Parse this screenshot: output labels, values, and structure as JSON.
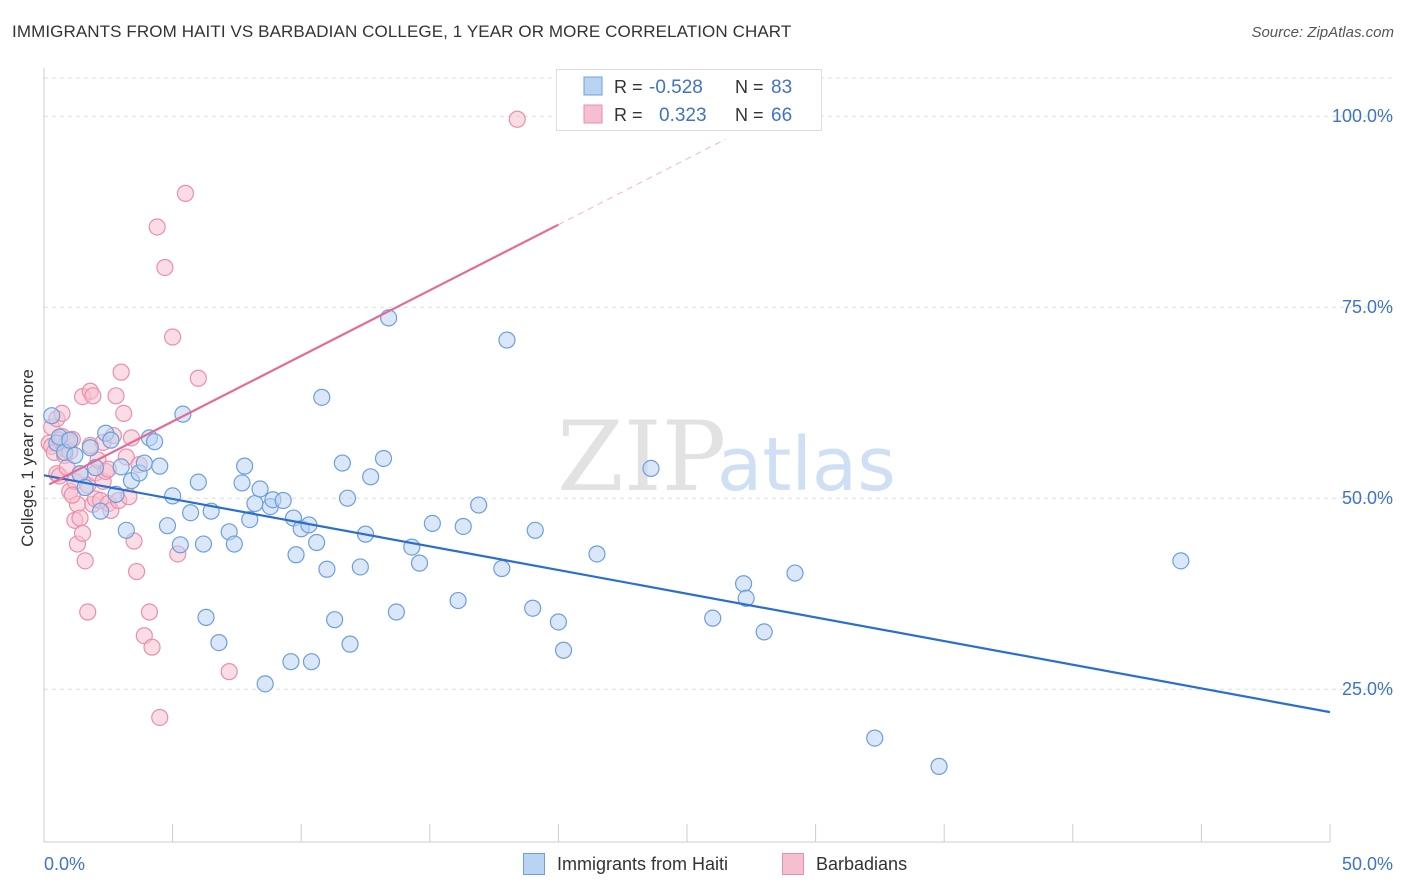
{
  "title": "IMMIGRANTS FROM HAITI VS BARBADIAN COLLEGE, 1 YEAR OR MORE CORRELATION CHART",
  "source": "Source: ZipAtlas.com",
  "watermark": {
    "zip": "ZIP",
    "atlas": "atlas"
  },
  "colors": {
    "blue_fill": "#b9d3f3",
    "blue_stroke": "#6c9fdc",
    "blue_line": "#2a6fce",
    "pink_fill": "#f6bfd0",
    "pink_stroke": "#ea8fab",
    "pink_line": "#e56b95",
    "axis_text": "#3d74c5",
    "grid": "#dddddd"
  },
  "legend": {
    "rows": [
      {
        "r_label": "R =",
        "r_value": "-0.528",
        "n_label": "N =",
        "n_value": "83"
      },
      {
        "r_label": "R =",
        "r_value": "0.323",
        "n_label": "N =",
        "n_value": "66"
      }
    ]
  },
  "bottom_legend": {
    "series1": "Immigrants from Haiti",
    "series2": "Barbadians"
  },
  "chart_data": {
    "type": "scatter",
    "xlabel": "",
    "ylabel": "College, 1 year or more",
    "xlim": [
      0,
      50
    ],
    "ylim": [
      5,
      105
    ],
    "x_tick_labels": [
      "0.0%",
      "50.0%"
    ],
    "y_ticks": [
      25,
      50,
      75,
      100
    ],
    "y_tick_labels": [
      "25.0%",
      "50.0%",
      "75.0%",
      "100.0%"
    ],
    "series": [
      {
        "name": "Immigrants from Haiti",
        "r": -0.528,
        "n": 83,
        "trend": {
          "x": [
            0,
            50
          ],
          "y": [
            53.0,
            22.0
          ]
        },
        "points": [
          [
            0.3,
            60.8
          ],
          [
            0.5,
            57.2
          ],
          [
            0.6,
            58.0
          ],
          [
            0.8,
            56.0
          ],
          [
            1.0,
            57.6
          ],
          [
            1.2,
            55.6
          ],
          [
            1.4,
            53.2
          ],
          [
            1.6,
            51.4
          ],
          [
            1.8,
            56.6
          ],
          [
            2.0,
            54.0
          ],
          [
            2.2,
            48.3
          ],
          [
            2.4,
            58.5
          ],
          [
            2.6,
            57.6
          ],
          [
            2.8,
            50.5
          ],
          [
            3.0,
            54.1
          ],
          [
            3.2,
            45.8
          ],
          [
            3.4,
            52.3
          ],
          [
            3.7,
            53.3
          ],
          [
            3.9,
            54.6
          ],
          [
            4.1,
            57.9
          ],
          [
            4.3,
            57.4
          ],
          [
            4.5,
            54.2
          ],
          [
            4.8,
            46.4
          ],
          [
            5.0,
            50.3
          ],
          [
            5.3,
            43.9
          ],
          [
            5.4,
            61.0
          ],
          [
            5.7,
            48.1
          ],
          [
            6.0,
            52.1
          ],
          [
            6.2,
            44.0
          ],
          [
            6.3,
            34.4
          ],
          [
            6.5,
            48.3
          ],
          [
            6.8,
            31.1
          ],
          [
            7.2,
            45.6
          ],
          [
            7.4,
            44.0
          ],
          [
            7.7,
            52.0
          ],
          [
            7.8,
            54.2
          ],
          [
            8.0,
            47.2
          ],
          [
            8.2,
            49.3
          ],
          [
            8.4,
            51.2
          ],
          [
            8.6,
            25.7
          ],
          [
            8.8,
            48.9
          ],
          [
            8.9,
            49.8
          ],
          [
            9.3,
            49.7
          ],
          [
            9.6,
            28.6
          ],
          [
            9.7,
            47.4
          ],
          [
            9.8,
            42.6
          ],
          [
            10.0,
            46.0
          ],
          [
            10.3,
            46.5
          ],
          [
            10.4,
            28.6
          ],
          [
            10.6,
            44.2
          ],
          [
            10.8,
            63.2
          ],
          [
            11.0,
            40.7
          ],
          [
            11.3,
            34.1
          ],
          [
            11.6,
            54.6
          ],
          [
            11.8,
            50.0
          ],
          [
            11.9,
            30.9
          ],
          [
            12.3,
            41.0
          ],
          [
            12.5,
            45.3
          ],
          [
            12.7,
            52.8
          ],
          [
            13.2,
            55.2
          ],
          [
            13.4,
            73.6
          ],
          [
            13.7,
            35.1
          ],
          [
            14.3,
            43.6
          ],
          [
            14.6,
            41.5
          ],
          [
            15.1,
            46.7
          ],
          [
            16.1,
            36.6
          ],
          [
            16.3,
            46.3
          ],
          [
            16.9,
            49.1
          ],
          [
            17.8,
            40.8
          ],
          [
            18.0,
            70.7
          ],
          [
            19.1,
            45.8
          ],
          [
            19.0,
            35.6
          ],
          [
            20.0,
            33.8
          ],
          [
            20.2,
            30.1
          ],
          [
            21.5,
            42.7
          ],
          [
            23.6,
            53.9
          ],
          [
            26.0,
            34.3
          ],
          [
            27.2,
            38.8
          ],
          [
            27.3,
            36.9
          ],
          [
            28.0,
            32.5
          ],
          [
            29.2,
            40.2
          ],
          [
            32.3,
            18.6
          ],
          [
            34.8,
            14.9
          ],
          [
            44.2,
            41.8
          ]
        ]
      },
      {
        "name": "Barbadians",
        "r": 0.323,
        "n": 66,
        "trend": {
          "x": [
            0.2,
            20.0
          ],
          "y": [
            51.8,
            85.8
          ]
        },
        "trend_ext": {
          "x": [
            20.0,
            26.5
          ],
          "y": [
            85.8,
            97.0
          ]
        },
        "points": [
          [
            0.2,
            57.2
          ],
          [
            0.3,
            59.3
          ],
          [
            0.3,
            56.8
          ],
          [
            0.4,
            56.0
          ],
          [
            0.5,
            53.2
          ],
          [
            0.5,
            60.4
          ],
          [
            0.6,
            57.6
          ],
          [
            0.6,
            52.9
          ],
          [
            0.7,
            61.1
          ],
          [
            0.7,
            58.1
          ],
          [
            0.8,
            56.5
          ],
          [
            0.8,
            55.6
          ],
          [
            0.9,
            57.5
          ],
          [
            0.9,
            54.0
          ],
          [
            1.0,
            56.1
          ],
          [
            1.0,
            50.9
          ],
          [
            1.1,
            57.7
          ],
          [
            1.2,
            52.2
          ],
          [
            1.2,
            47.1
          ],
          [
            1.3,
            49.2
          ],
          [
            1.3,
            44.0
          ],
          [
            1.4,
            53.2
          ],
          [
            1.4,
            47.4
          ],
          [
            1.5,
            63.3
          ],
          [
            1.5,
            45.4
          ],
          [
            1.6,
            41.8
          ],
          [
            1.7,
            51.7
          ],
          [
            1.7,
            35.1
          ],
          [
            1.8,
            64.0
          ],
          [
            1.8,
            56.9
          ],
          [
            1.9,
            63.4
          ],
          [
            1.9,
            49.2
          ],
          [
            2.0,
            53.3
          ],
          [
            2.0,
            49.9
          ],
          [
            2.1,
            55.0
          ],
          [
            2.2,
            49.7
          ],
          [
            2.3,
            52.2
          ],
          [
            2.3,
            57.3
          ],
          [
            2.4,
            53.5
          ],
          [
            2.5,
            49.3
          ],
          [
            2.6,
            48.4
          ],
          [
            2.7,
            58.2
          ],
          [
            2.8,
            63.4
          ],
          [
            2.9,
            49.7
          ],
          [
            3.0,
            66.5
          ],
          [
            3.1,
            61.1
          ],
          [
            3.2,
            55.4
          ],
          [
            3.3,
            50.2
          ],
          [
            3.4,
            57.9
          ],
          [
            3.5,
            44.4
          ],
          [
            3.6,
            40.4
          ],
          [
            3.7,
            54.4
          ],
          [
            3.9,
            32.0
          ],
          [
            4.1,
            35.1
          ],
          [
            4.2,
            30.5
          ],
          [
            4.4,
            85.5
          ],
          [
            4.5,
            21.3
          ],
          [
            4.7,
            80.2
          ],
          [
            5.0,
            71.1
          ],
          [
            5.2,
            42.7
          ],
          [
            5.5,
            89.9
          ],
          [
            6.0,
            65.7
          ],
          [
            7.2,
            27.3
          ],
          [
            18.4,
            99.6
          ],
          [
            2.5,
            53.8
          ],
          [
            1.1,
            50.4
          ]
        ]
      }
    ]
  }
}
